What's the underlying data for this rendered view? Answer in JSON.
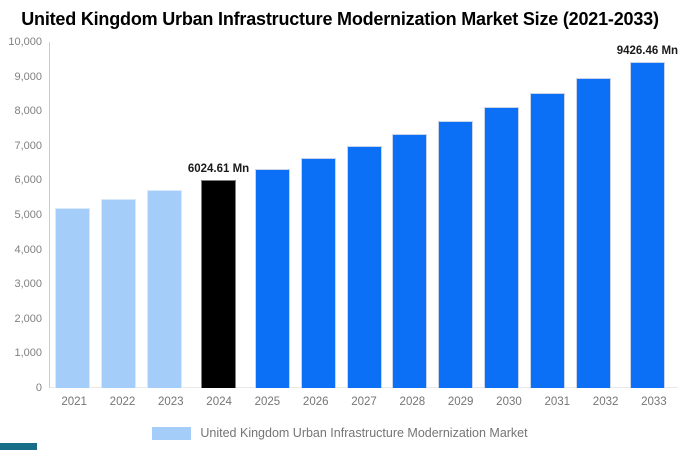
{
  "chart_data": {
    "type": "bar",
    "title": "United Kingdom Urban Infrastructure Modernization Market Size (2021-2033)",
    "categories": [
      "2021",
      "2022",
      "2023",
      "2024",
      "2025",
      "2026",
      "2027",
      "2028",
      "2029",
      "2030",
      "2031",
      "2032",
      "2033"
    ],
    "values": [
      5189.4,
      5454.1,
      5732.3,
      6024.61,
      6331.9,
      6654.8,
      6994.3,
      7351.0,
      7725.9,
      8119.9,
      8534.0,
      8969.3,
      9426.46
    ],
    "unit": "Mn",
    "xlabel": "",
    "ylabel": "",
    "ylim": [
      0,
      10000
    ],
    "y_tick_step": 1000,
    "y_ticks": [
      "0",
      "1,000",
      "2,000",
      "3,000",
      "4,000",
      "5,000",
      "6,000",
      "7,000",
      "8,000",
      "9,000",
      "10,000"
    ],
    "grid": false,
    "legend_position": "bottom",
    "annotations": [
      {
        "index": 3,
        "text": "6024.61 Mn"
      },
      {
        "index": 12,
        "text": "9426.46 Mn"
      }
    ],
    "bar_colors": [
      "#a4cdf9",
      "#a4cdf9",
      "#a4cdf9",
      "#000000",
      "#0b70f5",
      "#0b70f5",
      "#0b70f5",
      "#0b70f5",
      "#0b70f5",
      "#0b70f5",
      "#0b70f5",
      "#0b70f5",
      "#0b70f5"
    ],
    "bar_styles": [
      "light",
      "light",
      "light",
      "black",
      "blue",
      "blue",
      "blue",
      "blue",
      "blue",
      "blue",
      "blue",
      "blue",
      "blue"
    ]
  },
  "legend": {
    "label": "United Kingdom Urban Infrastructure Modernization Market",
    "swatch_color": "#a4cdf9"
  },
  "colors": {
    "historical_bar": "#a4cdf9",
    "base_year_bar": "#000000",
    "forecast_bar": "#0b70f5",
    "axis_line": "#cccccc",
    "tick_text": "#808080",
    "xlabel_text": "#757575",
    "legend_text": "#757575",
    "annotation_text": "#1a1a1a",
    "watermark": "#176d87",
    "background": "#ffffff"
  }
}
